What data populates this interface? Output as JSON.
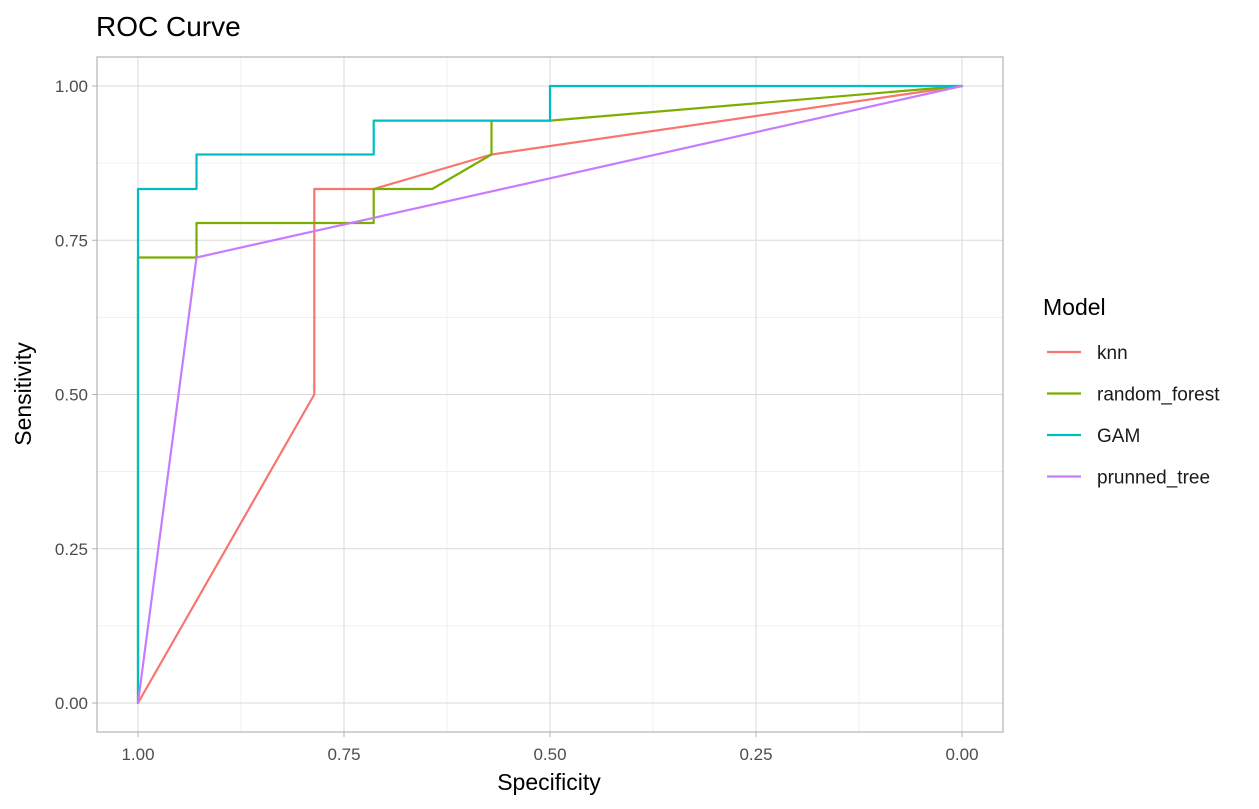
{
  "chart_data": {
    "type": "line",
    "title": "ROC Curve",
    "xlabel": "Specificity",
    "ylabel": "Sensitivity",
    "x_reversed": true,
    "xlim": [
      1.0,
      0.0
    ],
    "ylim": [
      0.0,
      1.0
    ],
    "x_ticks": [
      1.0,
      0.75,
      0.5,
      0.25,
      0.0
    ],
    "x_tick_labels": [
      "1.00",
      "0.75",
      "0.50",
      "0.25",
      "0.00"
    ],
    "y_ticks": [
      0.0,
      0.25,
      0.5,
      0.75,
      1.0
    ],
    "y_tick_labels": [
      "0.00",
      "0.25",
      "0.50",
      "0.75",
      "1.00"
    ],
    "grid": true,
    "legend_title": "Model",
    "legend_position": "right",
    "series": [
      {
        "name": "knn",
        "color": "#F8766D",
        "points": [
          [
            1.0,
            0.0
          ],
          [
            0.786,
            0.5
          ],
          [
            0.786,
            0.833
          ],
          [
            0.714,
            0.833
          ],
          [
            0.571,
            0.889
          ],
          [
            0.0,
            1.0
          ]
        ]
      },
      {
        "name": "random_forest",
        "color": "#7CAE00",
        "points": [
          [
            1.0,
            0.0
          ],
          [
            1.0,
            0.722
          ],
          [
            0.929,
            0.722
          ],
          [
            0.929,
            0.778
          ],
          [
            0.714,
            0.778
          ],
          [
            0.714,
            0.833
          ],
          [
            0.643,
            0.833
          ],
          [
            0.571,
            0.889
          ],
          [
            0.571,
            0.944
          ],
          [
            0.5,
            0.944
          ],
          [
            0.0,
            1.0
          ]
        ]
      },
      {
        "name": "GAM",
        "color": "#00BFC4",
        "points": [
          [
            1.0,
            0.0
          ],
          [
            1.0,
            0.833
          ],
          [
            0.929,
            0.833
          ],
          [
            0.929,
            0.889
          ],
          [
            0.714,
            0.889
          ],
          [
            0.714,
            0.944
          ],
          [
            0.5,
            0.944
          ],
          [
            0.5,
            1.0
          ],
          [
            0.0,
            1.0
          ]
        ]
      },
      {
        "name": "prunned_tree",
        "color": "#C77CFF",
        "points": [
          [
            1.0,
            0.0
          ],
          [
            0.929,
            0.722
          ],
          [
            0.0,
            1.0
          ]
        ]
      }
    ]
  }
}
